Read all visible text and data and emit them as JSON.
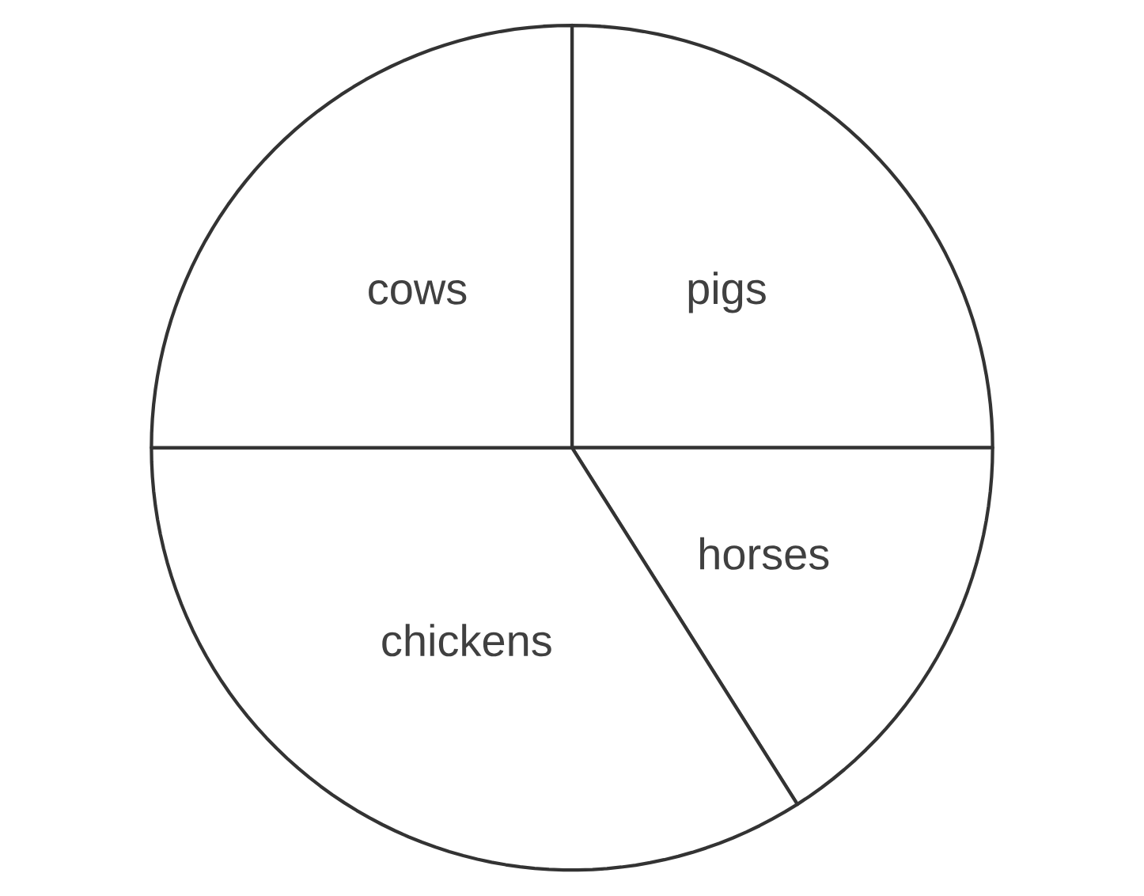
{
  "chart_data": {
    "type": "pie",
    "categories": [
      "pigs",
      "horses",
      "chickens",
      "cows"
    ],
    "values": [
      25,
      16,
      34,
      25
    ],
    "colors": [
      "#ffffff",
      "#ffffff",
      "#ffffff",
      "#ffffff"
    ]
  }
}
